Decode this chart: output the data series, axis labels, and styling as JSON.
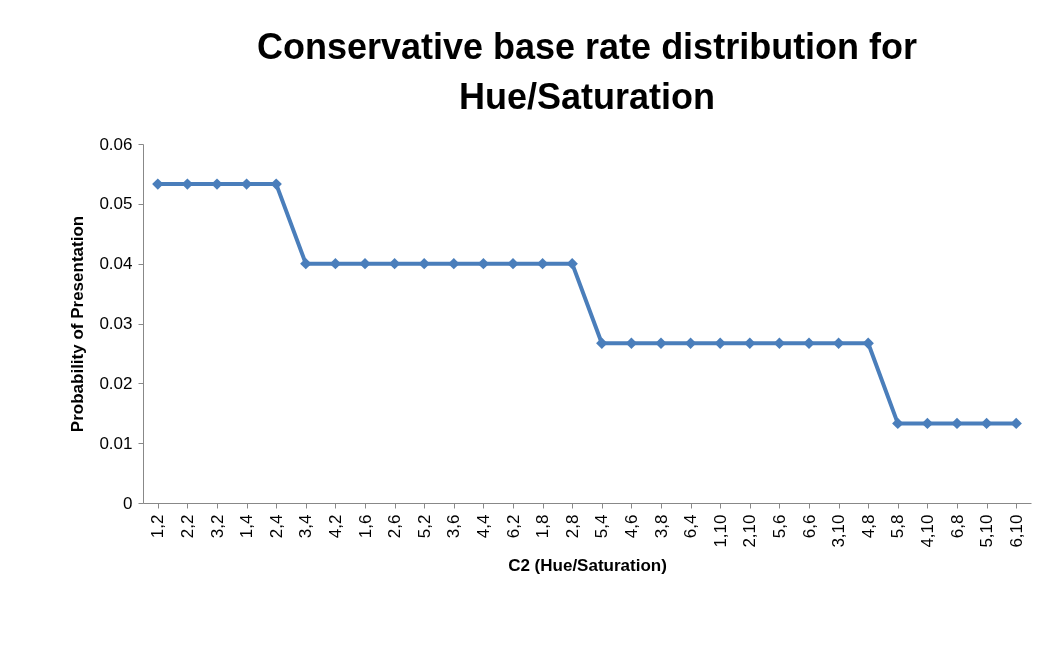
{
  "chart_data": {
    "type": "line",
    "title": "Conservative base rate distribution for\nHue/Saturation",
    "xlabel": "C2 (Hue/Saturation)",
    "ylabel": "Probability of Presentation",
    "categories": [
      "1,2",
      "2,2",
      "3,2",
      "1,4",
      "2,4",
      "3,4",
      "4,2",
      "1,6",
      "2,6",
      "5,2",
      "3,6",
      "4,4",
      "6,2",
      "1,8",
      "2,8",
      "5,4",
      "4,6",
      "3,8",
      "6,4",
      "1,10",
      "2,10",
      "5,6",
      "6,6",
      "3,10",
      "4,8",
      "5,8",
      "4,10",
      "6,8",
      "5,10",
      "6,10"
    ],
    "series": [
      {
        "color": "#4a7ebb",
        "values": [
          0.0533,
          0.0533,
          0.0533,
          0.0533,
          0.0533,
          0.04,
          0.04,
          0.04,
          0.04,
          0.04,
          0.04,
          0.04,
          0.04,
          0.04,
          0.04,
          0.0267,
          0.0267,
          0.0267,
          0.0267,
          0.0267,
          0.0267,
          0.0267,
          0.0267,
          0.0267,
          0.0267,
          0.0133,
          0.0133,
          0.0133,
          0.0133,
          0.0133
        ]
      }
    ],
    "ylim": [
      0,
      0.06
    ],
    "yticks": [
      0,
      0.01,
      0.02,
      0.03,
      0.04,
      0.05,
      0.06
    ],
    "grid": false,
    "legend": false,
    "marker": "diamond",
    "line_style": "solid"
  }
}
